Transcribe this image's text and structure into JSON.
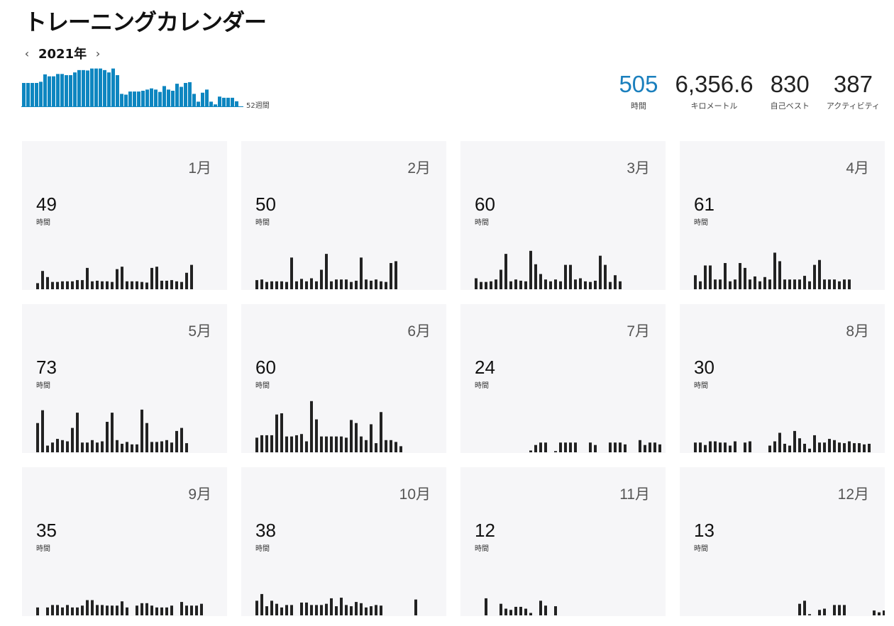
{
  "page": {
    "title": "トレーニングカレンダー"
  },
  "year_nav": {
    "prev": "‹",
    "year": "2021年",
    "next": "›"
  },
  "weekly": {
    "label": "52週間",
    "color": "#0e86c0",
    "values": [
      6,
      6,
      6,
      6,
      6.3,
      8.2,
      7.7,
      7.7,
      8.3,
      8.3,
      8,
      8,
      8.7,
      9.3,
      9.3,
      9.2,
      9.7,
      9.7,
      9.7,
      9.3,
      8.7,
      9.7,
      8,
      3.2,
      3,
      3.8,
      3.8,
      3.8,
      4,
      4.3,
      4.6,
      4.3,
      3.7,
      5.2,
      4.3,
      4,
      5.8,
      5,
      6,
      6.2,
      3.2,
      1.2,
      3.5,
      4.3,
      1.2,
      0.5,
      2.5,
      2.2,
      2.2,
      2.2,
      1.3,
      0
    ]
  },
  "stats": [
    {
      "value": "505",
      "label": "時間",
      "accent": true
    },
    {
      "value": "6,356.6",
      "label": "キロメートル",
      "accent": false
    },
    {
      "value": "830",
      "label": "自己ベスト",
      "accent": false
    },
    {
      "value": "387",
      "label": "アクティビティ",
      "accent": false
    }
  ],
  "months": [
    {
      "month": "1月",
      "hours": "49",
      "unit": "時間",
      "bars": [
        1,
        3,
        2,
        1.2,
        1.2,
        1.3,
        1.3,
        1.3,
        1.5,
        1.5,
        3.5,
        1.3,
        1.4,
        1.3,
        1.3,
        1.2,
        3.3,
        3.7,
        1.3,
        1.3,
        1.3,
        1.2,
        1.1,
        3.5,
        3.7,
        1.4,
        1.4,
        1.5,
        1.3,
        1.2,
        2.7,
        4
      ]
    },
    {
      "month": "2月",
      "hours": "50",
      "unit": "時間",
      "bars": [
        1.5,
        1.6,
        1.2,
        1.3,
        1.3,
        1.3,
        1.2,
        5.2,
        1.3,
        1.7,
        1.3,
        1.8,
        1.3,
        3.2,
        5.8,
        1.3,
        1.6,
        1.6,
        1.6,
        1.2,
        1.4,
        5.2,
        1.6,
        1.4,
        1.6,
        1.3,
        1.2,
        4.3,
        4.6
      ]
    },
    {
      "month": "3月",
      "hours": "60",
      "unit": "時間",
      "bars": [
        1.8,
        1.2,
        1.2,
        1.3,
        1.6,
        3.2,
        5.8,
        1.3,
        1.6,
        1.4,
        1.3,
        6.3,
        4.1,
        2.5,
        1.6,
        1.3,
        1.6,
        1.3,
        4,
        4,
        1.6,
        1.8,
        1.3,
        1.2,
        1.4,
        5.5,
        4,
        1.2,
        2.3,
        1.3
      ]
    },
    {
      "month": "4月",
      "hours": "61",
      "unit": "時間",
      "bars": [
        2.3,
        1.3,
        3.9,
        3.9,
        1.6,
        1.6,
        4.3,
        1.3,
        1.6,
        4.3,
        3.5,
        1.6,
        2.1,
        1.3,
        2,
        1.6,
        6,
        4.6,
        1.6,
        1.6,
        1.6,
        1.6,
        2.2,
        1.3,
        4,
        4.8,
        1.6,
        1.6,
        1.6,
        1.3,
        1.6,
        1.6
      ]
    },
    {
      "month": "5月",
      "hours": "73",
      "unit": "時間",
      "bars": [
        4.8,
        6.9,
        1.1,
        1.6,
        2.2,
        2,
        1.8,
        4,
        6.5,
        1.6,
        1.6,
        2,
        1.6,
        1.8,
        5,
        6.5,
        2,
        1.4,
        1.7,
        1.3,
        1.3,
        7,
        4.8,
        1.7,
        1.7,
        1.8,
        2,
        1.6,
        3.5,
        4,
        1.5
      ]
    },
    {
      "month": "6月",
      "hours": "60",
      "unit": "時間",
      "bars": [
        2.4,
        2.8,
        2.8,
        2.8,
        6.2,
        6.4,
        2.6,
        2.6,
        2.8,
        3,
        1.8,
        8.4,
        5.4,
        2.6,
        2.6,
        2.6,
        2.6,
        2.6,
        2.4,
        5.3,
        4.8,
        2.6,
        2,
        4.6,
        1.5,
        6.6,
        2,
        2,
        1.7,
        1
      ]
    },
    {
      "month": "7月",
      "hours": "24",
      "unit": "時間",
      "bars": [
        0,
        0,
        0,
        0,
        0,
        0,
        0,
        0,
        0,
        0,
        0,
        0.3,
        1.2,
        1.6,
        1.6,
        0,
        0.2,
        1.6,
        1.6,
        1.6,
        1.6,
        0,
        0,
        1.6,
        1.2,
        0,
        0,
        1.6,
        1.6,
        1.6,
        1.3,
        0,
        0,
        2,
        1.2,
        1.6,
        1.6,
        1.3,
        0,
        0,
        1.6,
        1.3,
        1.3
      ]
    },
    {
      "month": "8月",
      "hours": "30",
      "unit": "時間",
      "bars": [
        1.6,
        1.6,
        1.2,
        1.8,
        1.8,
        1.6,
        1.6,
        1.1,
        1.8,
        0,
        1.6,
        1.8,
        0,
        0,
        0,
        1.1,
        1.8,
        3.2,
        1.4,
        1.1,
        3.5,
        2.3,
        1.4,
        0.6,
        2.8,
        1.6,
        1.6,
        2.2,
        2,
        1.6,
        1.5,
        1.8,
        1.5,
        1.5,
        1.3,
        1.4
      ]
    },
    {
      "month": "9月",
      "hours": "35",
      "unit": "時間",
      "bars": [
        1.3,
        0,
        1.3,
        1.7,
        1.7,
        1.3,
        1.7,
        1.3,
        1.3,
        1.6,
        2.5,
        2.5,
        1.7,
        1.7,
        1.6,
        1.6,
        1.6,
        2.3,
        1.3,
        0,
        1.6,
        2,
        2,
        1.6,
        1.3,
        1.3,
        1.3,
        1.6,
        0,
        2.2,
        1.6,
        1.6,
        1.6,
        1.9
      ]
    },
    {
      "month": "10月",
      "hours": "38",
      "unit": "時間",
      "bars": [
        2.4,
        3.5,
        1.5,
        2.4,
        1.9,
        1.3,
        1.7,
        1.7,
        0,
        2.1,
        2.1,
        1.7,
        1.7,
        1.7,
        1.9,
        2.8,
        1.5,
        2.9,
        1.7,
        1.5,
        2.2,
        2,
        1.3,
        1.5,
        1.7,
        1.6,
        0,
        0,
        0,
        0,
        0,
        0,
        2.6
      ]
    },
    {
      "month": "11月",
      "hours": "12",
      "unit": "時間",
      "bars": [
        0,
        0,
        2.8,
        0,
        0,
        1.9,
        1.1,
        0.9,
        1.4,
        1.4,
        1.1,
        0.4,
        0,
        2.4,
        1.6,
        0,
        1.5
      ]
    },
    {
      "month": "12月",
      "hours": "13",
      "unit": "時間",
      "bars": [
        0,
        0,
        0,
        0,
        0,
        0,
        0,
        0,
        0,
        0,
        0,
        0,
        0,
        0,
        0,
        0,
        0,
        0,
        0,
        0,
        0,
        1.9,
        2.4,
        0.2,
        0,
        0.9,
        1.1,
        0,
        1.7,
        1.7,
        1.7,
        0,
        0,
        0,
        0,
        0,
        0.8,
        0.5,
        0.8,
        0,
        0,
        0.4,
        1.6,
        1.7,
        1.7
      ]
    }
  ]
}
